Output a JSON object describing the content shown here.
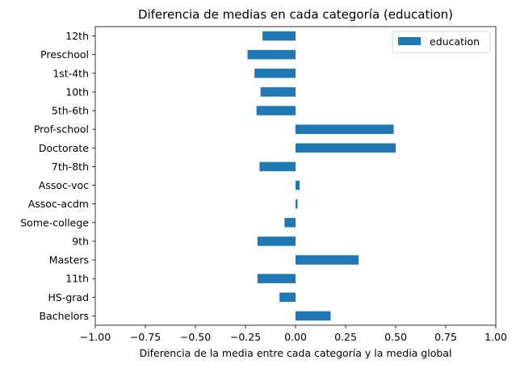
{
  "chart_data": {
    "type": "bar",
    "orientation": "horizontal",
    "title": "Diferencia de medias en cada categoría (education)",
    "xlabel": "Diferencia de la media entre cada categoría y la media global",
    "ylabel": "",
    "xlim": [
      -1.0,
      1.0
    ],
    "xticks": [
      -1.0,
      -0.75,
      -0.5,
      -0.25,
      0.0,
      0.25,
      0.5,
      0.75,
      1.0
    ],
    "xtick_labels": [
      "−1.00",
      "−0.75",
      "−0.50",
      "−0.25",
      "0.00",
      "0.25",
      "0.50",
      "0.75",
      "1.00"
    ],
    "grid": false,
    "legend_position": "top-right",
    "categories": [
      "12th",
      "Preschool",
      "1st-4th",
      "10th",
      "5th-6th",
      "Prof-school",
      "Doctorate",
      "7th-8th",
      "Assoc-voc",
      "Assoc-acdm",
      "Some-college",
      "9th",
      "Masters",
      "11th",
      "HS-grad",
      "Bachelors"
    ],
    "series": [
      {
        "name": "education",
        "color": "#1f77b4",
        "values": [
          -0.165,
          -0.24,
          -0.205,
          -0.175,
          -0.195,
          0.49,
          0.5,
          -0.18,
          0.02,
          0.01,
          -0.055,
          -0.19,
          0.315,
          -0.19,
          -0.08,
          0.175
        ]
      }
    ]
  }
}
